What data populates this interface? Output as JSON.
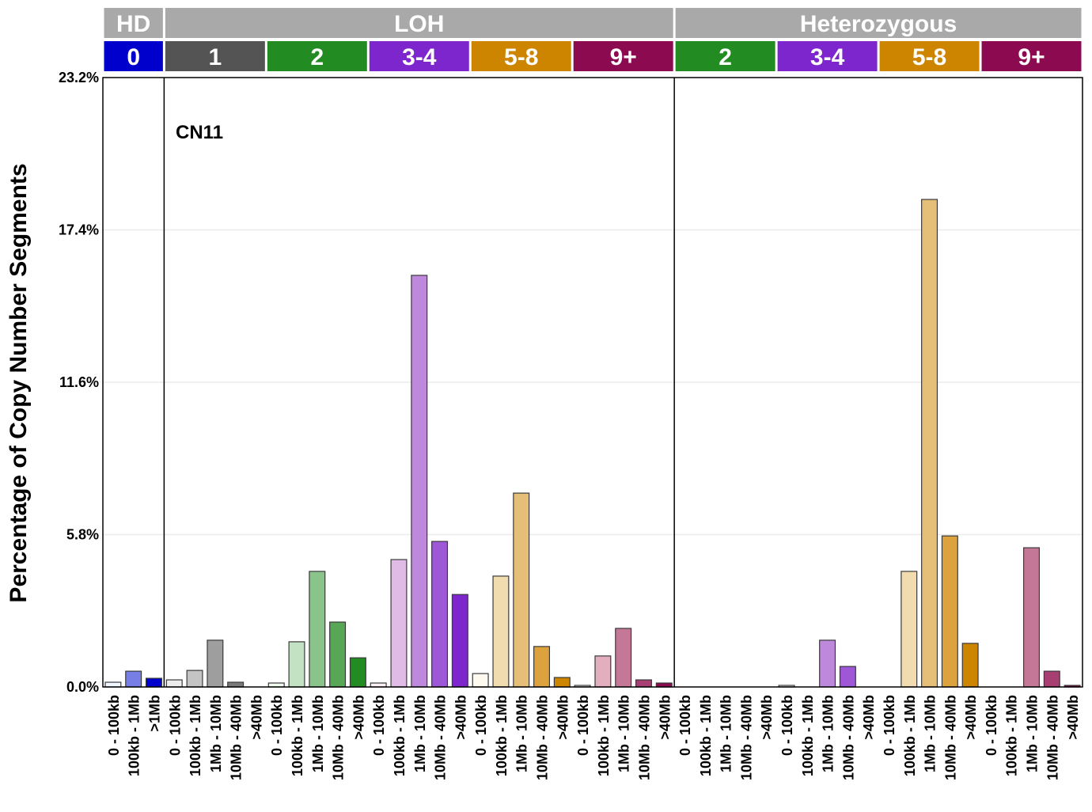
{
  "chart_data": {
    "type": "bar",
    "title": "",
    "annotation": "CN11",
    "ylabel": "Percentage of Copy Number Segments",
    "xlabel": "",
    "ylim": [
      0,
      23.2
    ],
    "yticks": [
      "0.0%",
      "5.8%",
      "11.6%",
      "17.4%",
      "23.2%"
    ],
    "ytick_values": [
      0,
      5.8,
      11.6,
      17.4,
      23.2
    ],
    "grid": true,
    "header_color": "#a9a9a9",
    "top_groups": [
      {
        "label": "HD",
        "subgroups": [
          0
        ]
      },
      {
        "label": "LOH",
        "subgroups": [
          1,
          2,
          3,
          4,
          5
        ]
      },
      {
        "label": "Heterozygous",
        "subgroups": [
          6,
          7,
          8,
          9
        ]
      }
    ],
    "subgroups": [
      {
        "label": "0",
        "color": "#0000cd",
        "categories": [
          "0 - 100kb",
          "100kb - 1Mb",
          ">1Mb"
        ],
        "values": [
          0.18,
          0.6,
          0.33
        ],
        "colors": [
          "#eef6ff",
          "#777ee6",
          "#0000cd"
        ]
      },
      {
        "label": "1",
        "color": "#545454",
        "categories": [
          "0 - 100kb",
          "100kb - 1Mb",
          "1Mb - 10Mb",
          "10Mb - 40Mb",
          ">40Mb"
        ],
        "values": [
          0.27,
          0.63,
          1.78,
          0.18,
          0.0
        ],
        "colors": [
          "#ececec",
          "#c4c4c4",
          "#9e9e9e",
          "#7a7a7a",
          "#545454"
        ]
      },
      {
        "label": "2",
        "color": "#228b22",
        "categories": [
          "0 - 100kb",
          "100kb - 1Mb",
          "1Mb - 10Mb",
          "10Mb - 40Mb",
          ">40Mb"
        ],
        "values": [
          0.15,
          1.72,
          4.4,
          2.47,
          1.11
        ],
        "colors": [
          "#f0fff0",
          "#c3e2c3",
          "#8ac48a",
          "#57a757",
          "#228b22"
        ]
      },
      {
        "label": "3-4",
        "color": "#7d26cd",
        "categories": [
          "0 - 100kb",
          "100kb - 1Mb",
          "1Mb - 10Mb",
          "10Mb - 40Mb",
          ">40Mb"
        ],
        "values": [
          0.15,
          4.85,
          15.67,
          5.54,
          3.52
        ],
        "colors": [
          "#fff0f5",
          "#e0bbe6",
          "#be88dd",
          "#9e57d6",
          "#7d26cd"
        ]
      },
      {
        "label": "5-8",
        "color": "#cd8500",
        "categories": [
          "0 - 100kb",
          "100kb - 1Mb",
          "1Mb - 10Mb",
          "10Mb - 40Mb",
          ">40Mb"
        ],
        "values": [
          0.51,
          4.22,
          7.38,
          1.54,
          0.36
        ],
        "colors": [
          "#fffaf0",
          "#f1dcb0",
          "#e5bf78",
          "#dba23e",
          "#cd8500"
        ]
      },
      {
        "label": "9+",
        "color": "#8b0a50",
        "categories": [
          "0 - 100kb",
          "100kb - 1Mb",
          "1Mb - 10Mb",
          "10Mb - 40Mb",
          ">40Mb"
        ],
        "values": [
          0.06,
          1.18,
          2.23,
          0.27,
          0.15
        ],
        "colors": [
          "#fbeef0",
          "#e3aebe",
          "#c57798",
          "#a73f73",
          "#8b0a50"
        ]
      },
      {
        "label": "2",
        "color": "#228b22",
        "categories": [
          "0 - 100kb",
          "100kb - 1Mb",
          "1Mb - 10Mb",
          "10Mb - 40Mb",
          ">40Mb"
        ],
        "values": [
          0,
          0,
          0,
          0,
          0
        ],
        "colors": [
          "#f0fff0",
          "#c3e2c3",
          "#8ac48a",
          "#57a757",
          "#228b22"
        ]
      },
      {
        "label": "3-4",
        "color": "#7d26cd",
        "categories": [
          "0 - 100kb",
          "100kb - 1Mb",
          "1Mb - 10Mb",
          "10Mb - 40Mb",
          ">40Mb"
        ],
        "values": [
          0.06,
          0,
          1.78,
          0.78,
          0
        ],
        "colors": [
          "#fff0f5",
          "#e0bbe6",
          "#be88dd",
          "#9e57d6",
          "#7d26cd"
        ]
      },
      {
        "label": "5-8",
        "color": "#cd8500",
        "categories": [
          "0 - 100kb",
          "100kb - 1Mb",
          "1Mb - 10Mb",
          "10Mb - 40Mb",
          ">40Mb"
        ],
        "values": [
          0,
          4.4,
          18.56,
          5.75,
          1.66
        ],
        "colors": [
          "#fffaf0",
          "#f1dcb0",
          "#e5bf78",
          "#dba23e",
          "#cd8500"
        ]
      },
      {
        "label": "9+",
        "color": "#8b0a50",
        "categories": [
          "0 - 100kb",
          "100kb - 1Mb",
          "1Mb - 10Mb",
          "10Mb - 40Mb",
          ">40Mb"
        ],
        "values": [
          0,
          0,
          5.3,
          0.6,
          0.06
        ],
        "colors": [
          "#fbeef0",
          "#e3aebe",
          "#c57798",
          "#a73f73",
          "#8b0a50"
        ]
      }
    ]
  }
}
